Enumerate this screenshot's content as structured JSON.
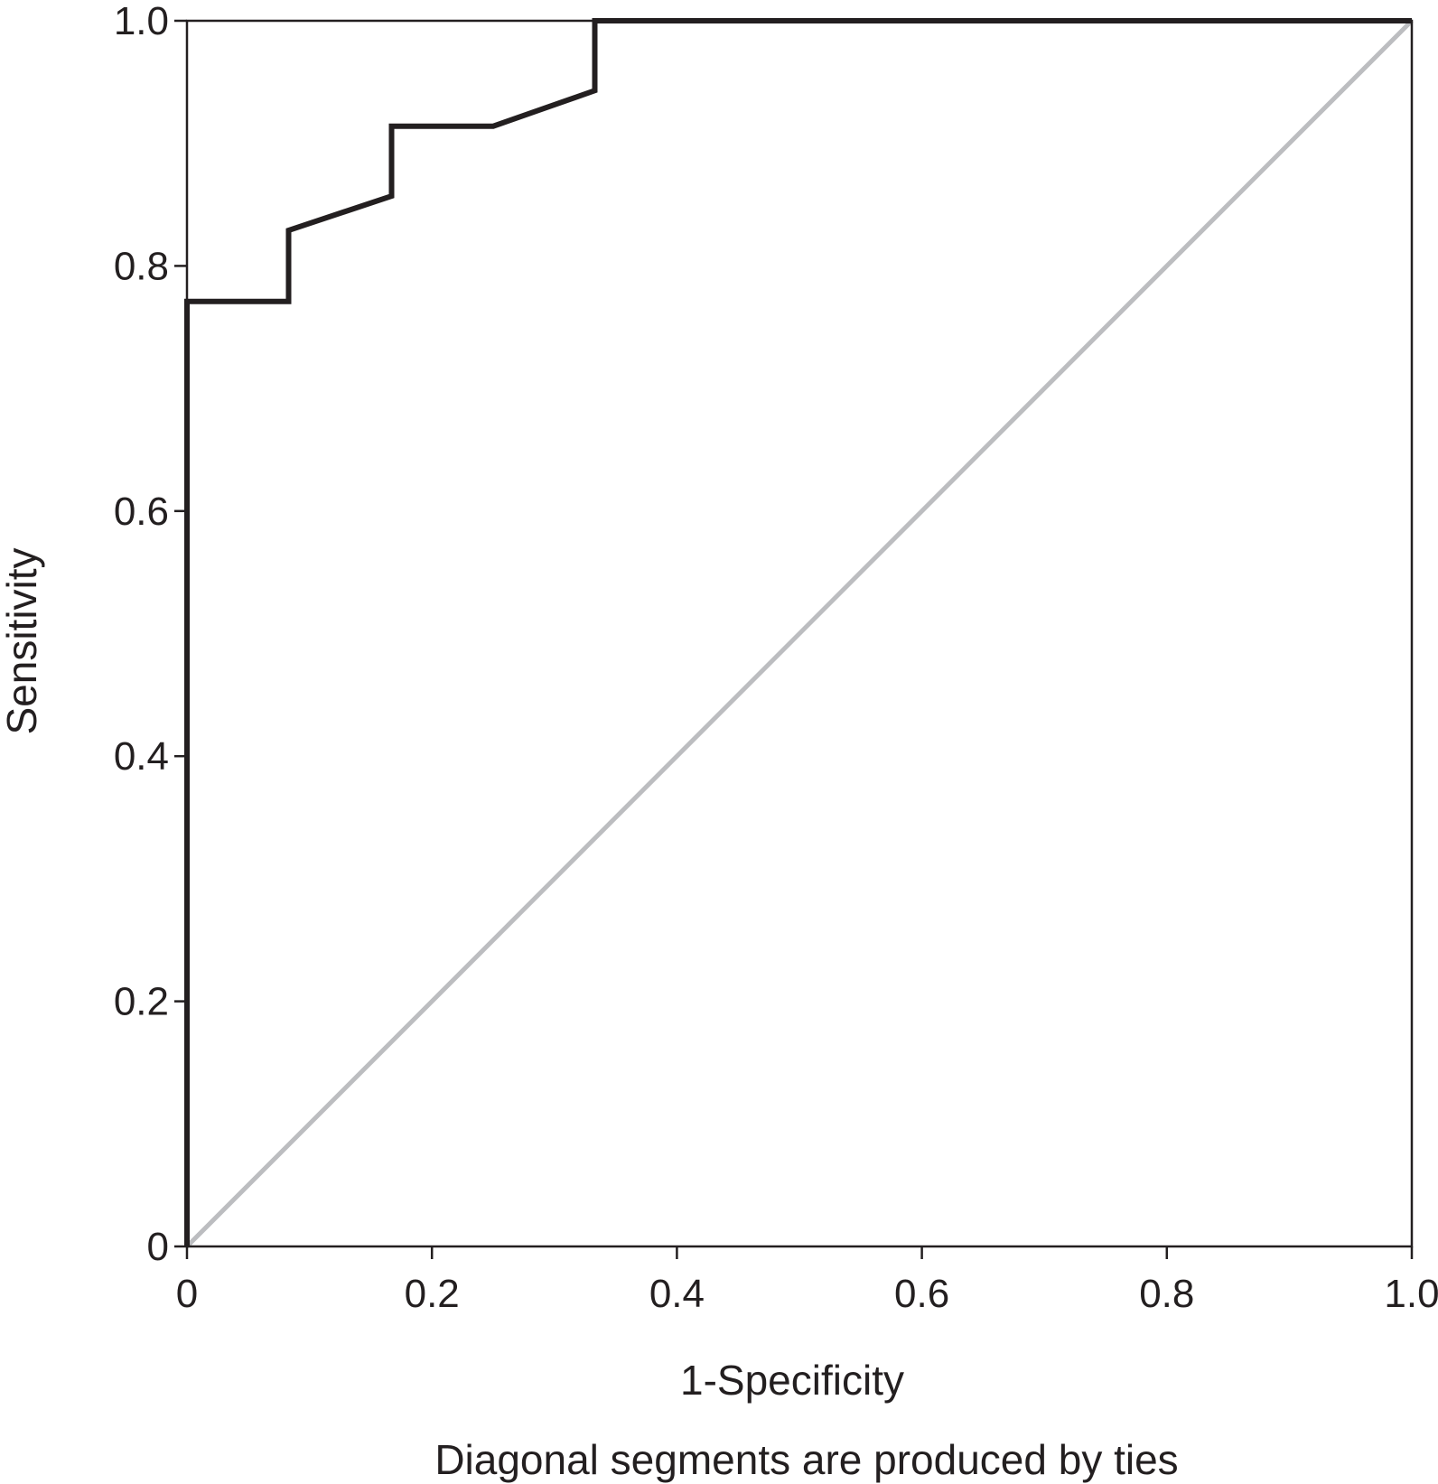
{
  "chart_data": {
    "type": "line",
    "title": "",
    "xlabel": "1-Specificity",
    "ylabel": "Sensitivity",
    "xlim": [
      0,
      1
    ],
    "ylim": [
      0,
      1
    ],
    "x_ticks": [
      "0",
      "0.2",
      "0.4",
      "0.6",
      "0.8",
      "1.0"
    ],
    "y_ticks": [
      "0",
      "0.2",
      "0.4",
      "0.6",
      "0.8",
      "1.0"
    ],
    "grid": false,
    "legend": "none",
    "footnote": "Diagonal segments are produced by ties",
    "series": [
      {
        "color": "#231f20",
        "x": [
          0,
          0,
          0.083,
          0.083,
          0.167,
          0.167,
          0.25,
          0.333,
          0.333,
          1.0
        ],
        "y": [
          0,
          0.771,
          0.771,
          0.829,
          0.857,
          0.914,
          0.914,
          0.943,
          1.0,
          1.0
        ]
      },
      {
        "color": "#bcbdc0",
        "x": [
          0,
          1
        ],
        "y": [
          0,
          1
        ]
      }
    ]
  }
}
